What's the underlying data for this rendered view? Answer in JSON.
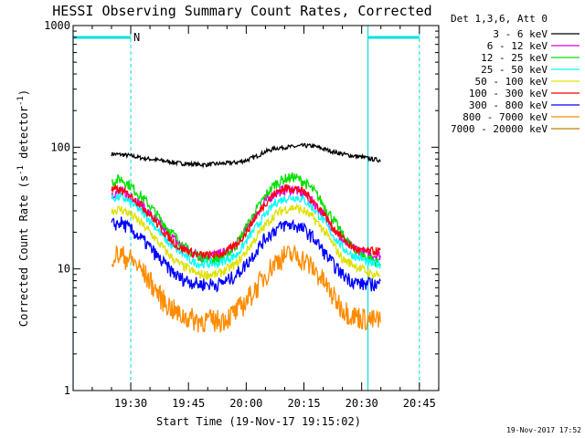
{
  "chart_data": {
    "type": "line",
    "title": "HESSI Observing Summary Count Rates, Corrected",
    "xlabel": "Start Time (19-Nov-17 19:15:02)",
    "ylabel_parts": [
      "Corrected Count Rate (s",
      "-1",
      " detector",
      "-1",
      ")"
    ],
    "y_scale": "log",
    "ylim": [
      1,
      1000
    ],
    "xlim_minutes_after_start": [
      0,
      95
    ],
    "y_tick_labels": [
      "1",
      "10",
      "100",
      "1000"
    ],
    "y_ticks": [
      1,
      10,
      100,
      1000
    ],
    "x_tick_labels": [
      "19:30",
      "19:45",
      "20:00",
      "20:15",
      "20:30",
      "20:45"
    ],
    "x_ticks_minutes_after_start": [
      14.97,
      29.97,
      44.97,
      59.97,
      74.97,
      89.97
    ],
    "legend_header": "Det 1,3,6, Att 0",
    "legend_placement": "top-right outside",
    "timestamp": "19-Nov-2017 17:52",
    "flag_label": "N",
    "flags": {
      "night_bars": [
        [
          0,
          14.97
        ],
        [
          76.6,
          89.97
        ]
      ],
      "dashed_markers": [
        14.97,
        89.97
      ],
      "solid_markers": [
        0,
        76.6
      ],
      "color": "#00e0e0"
    },
    "x_minutes_after_start": [
      10.0,
      12.5,
      15.0,
      17.5,
      20.0,
      22.5,
      25.0,
      27.5,
      30.0,
      32.5,
      35.0,
      37.5,
      40.0,
      42.5,
      45.0,
      47.5,
      50.0,
      52.5,
      55.0,
      57.5,
      60.0,
      62.5,
      65.0,
      67.5,
      70.0,
      72.5,
      75.0,
      77.5,
      80.0
    ],
    "series": [
      {
        "name": "3 - 6 keV",
        "color": "#000000",
        "values": [
          88,
          87,
          85,
          82,
          80,
          78,
          76,
          74,
          73,
          72,
          72,
          73,
          74,
          75,
          78,
          84,
          92,
          98,
          100,
          101,
          103,
          102,
          97,
          92,
          88,
          85,
          83,
          80,
          78
        ]
      },
      {
        "name": "6 - 12 keV",
        "color": "#e000e0",
        "values": [
          42,
          43,
          40,
          34,
          28,
          23,
          19,
          16,
          14,
          13,
          13,
          13,
          14,
          16,
          21,
          28,
          36,
          42,
          45,
          45,
          41,
          35,
          28,
          22,
          17,
          15,
          14,
          13,
          13
        ]
      },
      {
        "name": "12 - 25 keV",
        "color": "#00e000",
        "values": [
          52,
          55,
          48,
          40,
          33,
          26,
          21,
          17,
          14,
          13,
          12,
          12,
          13,
          16,
          22,
          30,
          40,
          50,
          55,
          57,
          52,
          44,
          34,
          26,
          19,
          15,
          13,
          12,
          11
        ]
      },
      {
        "name": "25 - 50 keV",
        "color": "#00ffff",
        "values": [
          38,
          39,
          35,
          30,
          25,
          20,
          16,
          14,
          12,
          11,
          11,
          11,
          12,
          13,
          17,
          22,
          28,
          35,
          38,
          39,
          37,
          31,
          25,
          19,
          15,
          13,
          12,
          11,
          11
        ]
      },
      {
        "name": "50 - 100 keV",
        "color": "#e0e000",
        "values": [
          30,
          31,
          28,
          24,
          20,
          16,
          13,
          11,
          10,
          9,
          9,
          9,
          10,
          11,
          14,
          18,
          23,
          28,
          31,
          32,
          30,
          26,
          21,
          16,
          12,
          11,
          10,
          9,
          9
        ]
      },
      {
        "name": "100 - 300 keV",
        "color": "#ff0000",
        "values": [
          45,
          44,
          40,
          34,
          28,
          22,
          18,
          15,
          14,
          13,
          13,
          13,
          14,
          16,
          20,
          27,
          35,
          42,
          46,
          46,
          43,
          36,
          29,
          22,
          18,
          15,
          14,
          14,
          14
        ]
      },
      {
        "name": "300 - 800 keV",
        "color": "#0000ff",
        "values": [
          23,
          24,
          21,
          18,
          15,
          12,
          10,
          8.5,
          8,
          7.5,
          7.5,
          7.5,
          8,
          9,
          11,
          14,
          18,
          21,
          23,
          23,
          21,
          18,
          14,
          11,
          9,
          8,
          7.5,
          7.5,
          7.5
        ]
      },
      {
        "name": "800 - 7000 keV",
        "color": "#ff8c00",
        "values": [
          13,
          13,
          12,
          10,
          8,
          6,
          5,
          4.2,
          4,
          3.8,
          3.8,
          3.8,
          4,
          4.5,
          5.5,
          7,
          9,
          11.5,
          13,
          13,
          12,
          10,
          8,
          6,
          4.8,
          4.2,
          4,
          3.8,
          3.8
        ]
      },
      {
        "name": "7000 - 20000 keV",
        "color": "#c08000",
        "values": []
      }
    ]
  }
}
